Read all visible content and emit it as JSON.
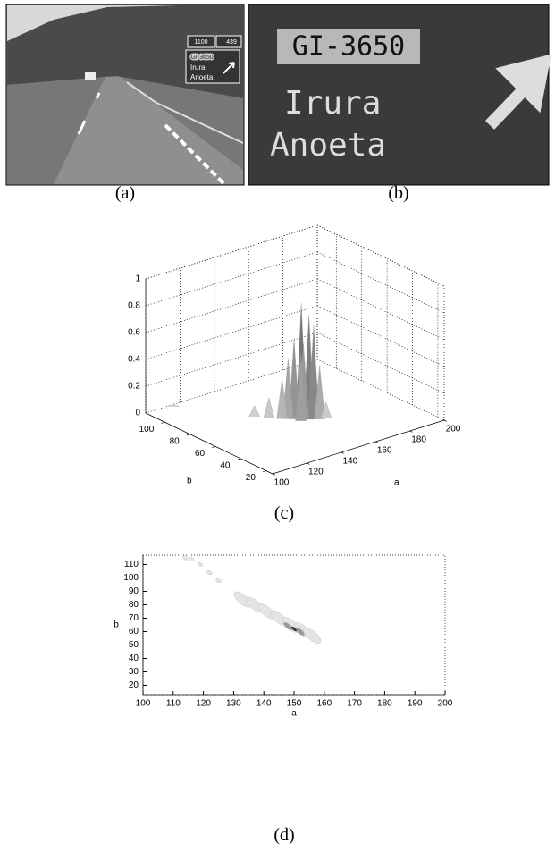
{
  "figure": {
    "panel_a": {
      "caption": "(a)",
      "sign": {
        "distance": "1100",
        "exit": "439",
        "road": "GI-3650",
        "towns": [
          "Irura",
          "Anoeta"
        ]
      }
    },
    "panel_b": {
      "caption": "(b)",
      "road": "GI-3650",
      "towns": [
        "Irura",
        "Anoeta"
      ]
    }
  },
  "chart_data": [
    {
      "type": "surface",
      "caption": "(c)",
      "xlabel": "a",
      "ylabel": "b",
      "xlim": [
        100,
        200
      ],
      "ylim": [
        15,
        115
      ],
      "zlim": [
        0,
        1
      ],
      "xticks": [
        100,
        120,
        140,
        160,
        180,
        200
      ],
      "yticks": [
        20,
        40,
        60,
        80,
        100
      ],
      "zticks": [
        0,
        0.2,
        0.4,
        0.6,
        0.8,
        1
      ],
      "points": [
        {
          "a": 150,
          "b": 60,
          "z": 0.87
        },
        {
          "a": 153,
          "b": 58,
          "z": 0.78
        },
        {
          "a": 148,
          "b": 63,
          "z": 0.6
        },
        {
          "a": 155,
          "b": 57,
          "z": 0.7
        },
        {
          "a": 152,
          "b": 61,
          "z": 0.55
        },
        {
          "a": 149,
          "b": 59,
          "z": 0.5
        },
        {
          "a": 146,
          "b": 65,
          "z": 0.45
        },
        {
          "a": 157,
          "b": 55,
          "z": 0.4
        },
        {
          "a": 144,
          "b": 67,
          "z": 0.3
        },
        {
          "a": 140,
          "b": 72,
          "z": 0.15
        },
        {
          "a": 160,
          "b": 54,
          "z": 0.12
        },
        {
          "a": 136,
          "b": 78,
          "z": 0.08
        },
        {
          "a": 115,
          "b": 113,
          "z": 0.01
        }
      ]
    },
    {
      "type": "contour",
      "caption": "(d)",
      "xlabel": "a",
      "ylabel": "b",
      "xlim": [
        100,
        200
      ],
      "ylim": [
        13,
        117
      ],
      "xticks": [
        100,
        110,
        120,
        130,
        140,
        150,
        160,
        170,
        180,
        190,
        200
      ],
      "yticks": [
        20,
        30,
        40,
        50,
        60,
        70,
        80,
        90,
        100,
        110
      ],
      "blobs": [
        {
          "a": 133,
          "b": 84,
          "level": 1
        },
        {
          "a": 137,
          "b": 80,
          "level": 1
        },
        {
          "a": 141,
          "b": 75,
          "level": 1
        },
        {
          "a": 145,
          "b": 70,
          "level": 1
        },
        {
          "a": 149,
          "b": 65,
          "level": 1
        },
        {
          "a": 153,
          "b": 61,
          "level": 1
        },
        {
          "a": 156,
          "b": 57,
          "level": 1
        },
        {
          "a": 148,
          "b": 64,
          "level": 2
        },
        {
          "a": 152,
          "b": 60,
          "level": 2
        },
        {
          "a": 150,
          "b": 62,
          "level": 3
        },
        {
          "a": 114,
          "b": 115,
          "level": 1
        },
        {
          "a": 116,
          "b": 114,
          "level": 1
        },
        {
          "a": 119,
          "b": 110,
          "level": 1
        },
        {
          "a": 122,
          "b": 104,
          "level": 1
        },
        {
          "a": 125,
          "b": 98,
          "level": 1
        }
      ]
    }
  ]
}
